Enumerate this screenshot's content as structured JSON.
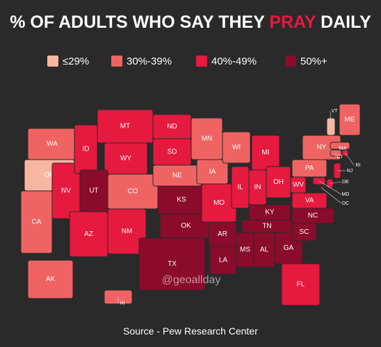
{
  "title_parts": [
    "% OF ADULTS WHO SAY THEY ",
    "PRAY",
    " DAILY"
  ],
  "legend": [
    {
      "label": "≤29%",
      "color": "#f7b6a1"
    },
    {
      "label": "30%-39%",
      "color": "#ef6462"
    },
    {
      "label": "40%-49%",
      "color": "#e6193f"
    },
    {
      "label": "50%+",
      "color": "#8a0b2b"
    }
  ],
  "states": [
    {
      "label": "WA",
      "category": 1
    },
    {
      "label": "OR",
      "category": 0
    },
    {
      "label": "CA",
      "category": 1
    },
    {
      "label": "NV",
      "category": 2
    },
    {
      "label": "ID",
      "category": 2
    },
    {
      "label": "MT",
      "category": 2
    },
    {
      "label": "WY",
      "category": 2
    },
    {
      "label": "UT",
      "category": 3
    },
    {
      "label": "CO",
      "category": 1
    },
    {
      "label": "AZ",
      "category": 2
    },
    {
      "label": "NM",
      "category": 2
    },
    {
      "label": "ND",
      "category": 2
    },
    {
      "label": "SD",
      "category": 2
    },
    {
      "label": "NE",
      "category": 1
    },
    {
      "label": "KS",
      "category": 3
    },
    {
      "label": "OK",
      "category": 3
    },
    {
      "label": "TX",
      "category": 3
    },
    {
      "label": "MN",
      "category": 1
    },
    {
      "label": "IA",
      "category": 1
    },
    {
      "label": "MO",
      "category": 2
    },
    {
      "label": "AR",
      "category": 3
    },
    {
      "label": "LA",
      "category": 3
    },
    {
      "label": "WI",
      "category": 1
    },
    {
      "label": "IL",
      "category": 2
    },
    {
      "label": "MI",
      "category": 2
    },
    {
      "label": "IN",
      "category": 2
    },
    {
      "label": "OH",
      "category": 2
    },
    {
      "label": "KY",
      "category": 3
    },
    {
      "label": "TN",
      "category": 3
    },
    {
      "label": "MS",
      "category": 3
    },
    {
      "label": "AL",
      "category": 3
    },
    {
      "label": "GA",
      "category": 3
    },
    {
      "label": "FL",
      "category": 2
    },
    {
      "label": "SC",
      "category": 3
    },
    {
      "label": "NC",
      "category": 3
    },
    {
      "label": "WV",
      "category": 2
    },
    {
      "label": "VA",
      "category": 2
    },
    {
      "label": "PA",
      "category": 1
    },
    {
      "label": "NY",
      "category": 1
    },
    {
      "label": "VT",
      "category": 0
    },
    {
      "label": "ME",
      "category": 1
    },
    {
      "label": "MA",
      "category": 1
    },
    {
      "label": "CT",
      "category": 1
    },
    {
      "label": "RI",
      "category": 2
    },
    {
      "label": "NJ",
      "category": 2
    },
    {
      "label": "DE",
      "category": 2
    },
    {
      "label": "MD",
      "category": 2
    },
    {
      "label": "DC",
      "category": 3
    },
    {
      "label": "AK",
      "category": 1
    },
    {
      "label": "HI",
      "category": 1
    }
  ],
  "watermark": "@geoallday",
  "source": "Source - Pew Research Center"
}
